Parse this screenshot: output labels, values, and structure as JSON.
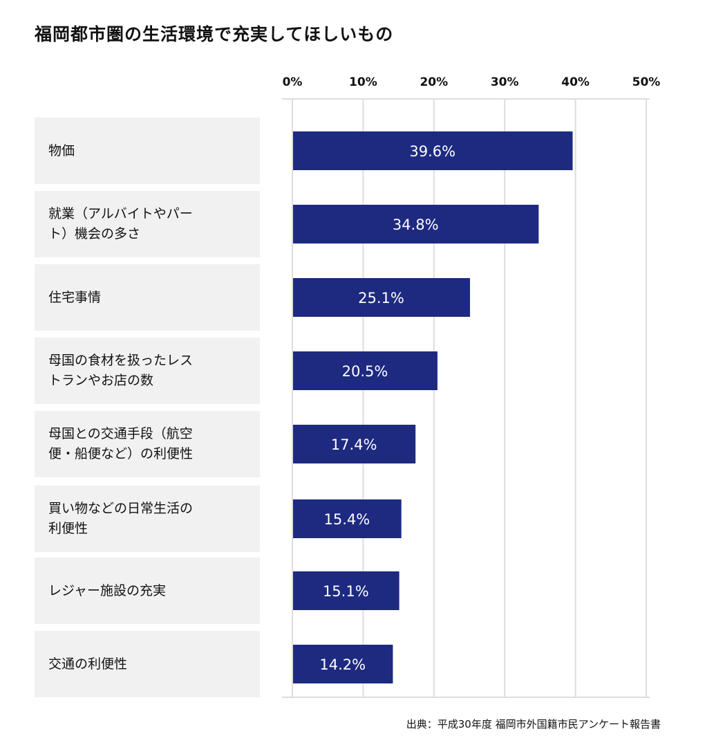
{
  "chart_data": {
    "type": "bar",
    "orientation": "horizontal",
    "title": "福岡都市圏の生活環境で充実してほしいもの",
    "source": "出典：平成30年度 福岡市外国籍市民アンケート報告書",
    "categories": [
      "物価",
      "就業（アルバイトやパー\nト）機会の多さ",
      "住宅事情",
      "母国の食材を扱ったレス\nトランやお店の数",
      "母国との交通手段（航空\n便・船便など）の利便性",
      "買い物などの日常生活の\n利便性",
      "レジャー施設の充実",
      "交通の利便性"
    ],
    "values": [
      39.6,
      34.8,
      25.1,
      20.5,
      17.4,
      15.4,
      15.1,
      14.2
    ],
    "value_labels": [
      "39.6%",
      "34.8%",
      "25.1%",
      "20.5%",
      "17.4%",
      "15.4%",
      "15.1%",
      "14.2%"
    ],
    "xlim": [
      0,
      50
    ],
    "xticks": [
      0,
      10,
      20,
      30,
      40,
      50
    ],
    "xtick_labels": [
      "0%",
      "10%",
      "20%",
      "30%",
      "40%",
      "50%"
    ],
    "axis_position": "top",
    "grid": true,
    "colors": {
      "bar": "#1e2a80",
      "grid": "#dddddd",
      "label_bg": "#f1f1f1",
      "bar_text": "#ffffff"
    }
  }
}
